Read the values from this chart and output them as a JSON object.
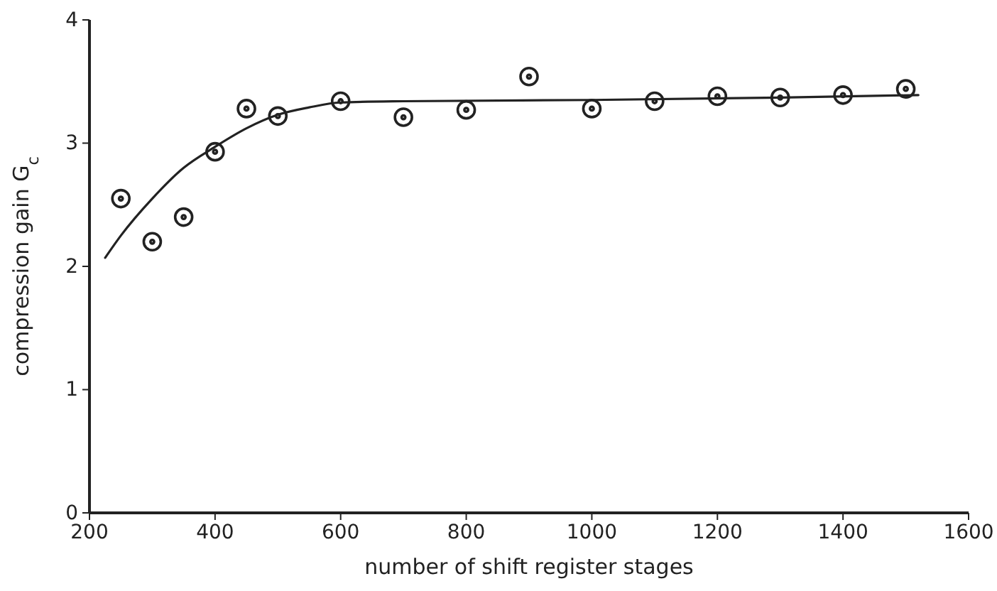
{
  "chart_data": {
    "type": "scatter",
    "xlabel": "number of shift register stages",
    "ylabel": "compression gain G$_{c}$",
    "xlim": [
      200,
      1600
    ],
    "xticks": [
      200,
      400,
      600,
      800,
      1000,
      1200,
      1400,
      1600
    ],
    "ylim": [
      0,
      4
    ],
    "yticks": [
      0,
      1,
      2,
      3,
      4
    ],
    "grid": false,
    "marker": "circle",
    "series": [
      {
        "color": "#222222",
        "x": [
          250,
          300,
          350,
          400,
          450,
          500,
          600,
          700,
          800,
          900,
          1000,
          1100,
          1200,
          1300,
          1400,
          1500
        ],
        "values": [
          2.55,
          2.2,
          2.4,
          2.93,
          3.28,
          3.22,
          3.34,
          3.21,
          3.27,
          3.54,
          3.28,
          3.34,
          3.38,
          3.37,
          3.39,
          3.44
        ]
      },
      {
        "type": "line",
        "color": "#222222",
        "marker": "none",
        "line_style": "solid",
        "x": [
          225,
          250,
          300,
          350,
          400,
          450,
          500,
          550,
          600,
          700,
          1000,
          1300,
          1520
        ],
        "values": [
          2.07,
          2.25,
          2.55,
          2.8,
          2.97,
          3.12,
          3.23,
          3.29,
          3.33,
          3.34,
          3.35,
          3.37,
          3.39
        ]
      }
    ]
  }
}
